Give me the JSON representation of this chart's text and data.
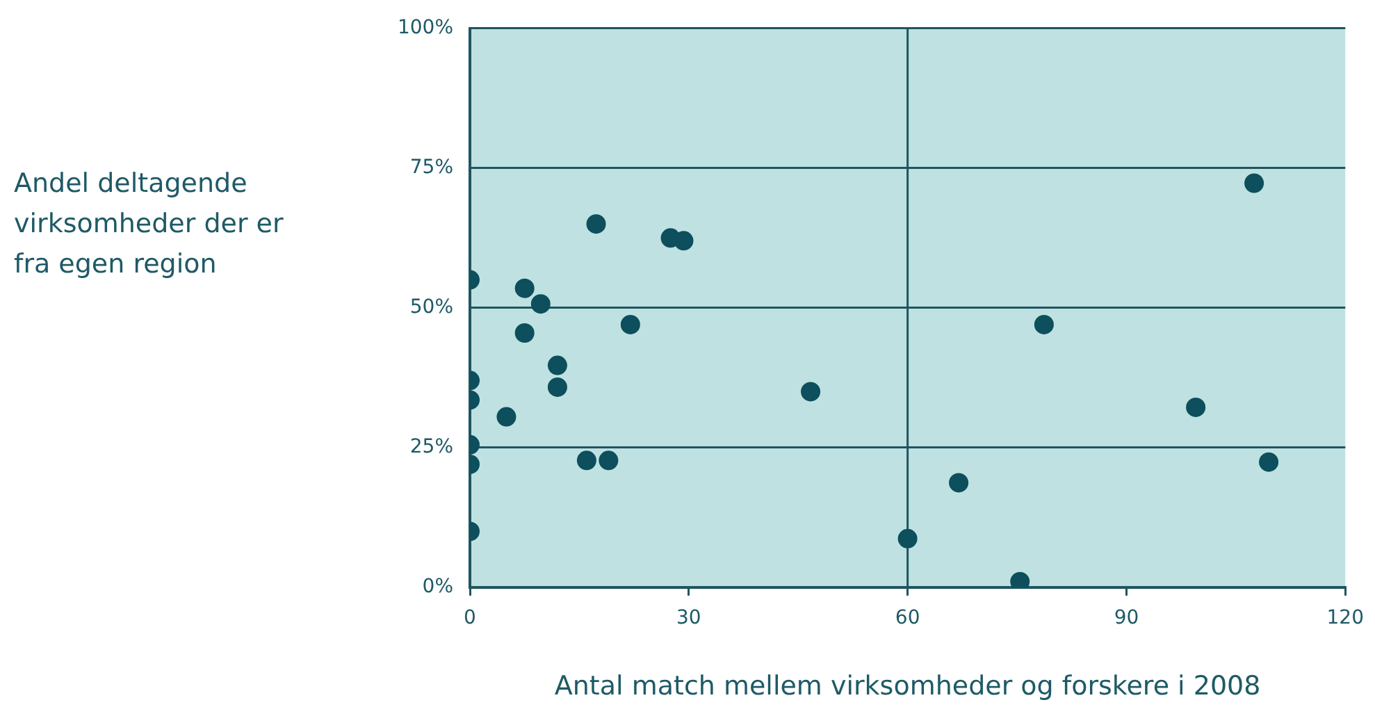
{
  "chart_data": {
    "type": "scatter",
    "xlabel": "Antal match mellem virksomheder og forskere i 2008",
    "ylabel": "Andel deltagende virksomheder der er fra egen region",
    "series": [
      {
        "color": "#0d4f5c",
        "x": [
          0,
          0,
          0,
          0,
          0,
          0,
          5,
          7.5,
          7.5,
          9.7,
          12,
          12,
          16,
          19,
          17.3,
          22,
          27.5,
          29.3,
          46.7,
          60,
          67,
          75.4,
          78.7,
          99.5,
          107.5,
          109.5
        ],
        "values": [
          55,
          37,
          33.5,
          25.5,
          22,
          10,
          30.5,
          53.5,
          45.5,
          50.7,
          39.7,
          35.8,
          22.7,
          22.7,
          65,
          47,
          62.5,
          62,
          35,
          8.7,
          18.7,
          1,
          47,
          32.2,
          72.3,
          22.4
        ]
      }
    ],
    "xlim": [
      0,
      120
    ],
    "xticks": [
      0,
      30,
      60,
      90,
      120
    ],
    "ylim": [
      0,
      100
    ],
    "yticks": [
      {
        "value": 0,
        "label": "0%"
      },
      {
        "value": 25,
        "label": "25%"
      },
      {
        "value": 50,
        "label": "50%"
      },
      {
        "value": 75,
        "label": "75%"
      },
      {
        "value": 100,
        "label": "100%"
      }
    ],
    "grid": "y",
    "marker": "circle",
    "legend": false,
    "ref_lines": [
      {
        "axis": "x",
        "value": 60,
        "label": null,
        "color": "#1e5560"
      }
    ]
  }
}
